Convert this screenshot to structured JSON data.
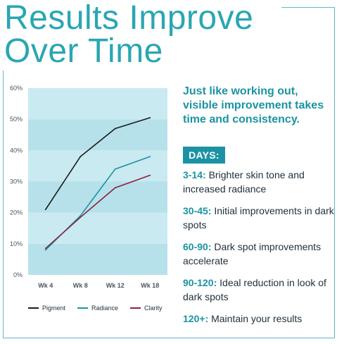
{
  "title": {
    "line1": "Results Improve",
    "line2": "Over Time"
  },
  "chart_data": {
    "type": "line",
    "categories": [
      "Wk 4",
      "Wk 8",
      "Wk 12",
      "Wk 18"
    ],
    "ylim": [
      0,
      60
    ],
    "yticks": [
      "0%",
      "10%",
      "20%",
      "30%",
      "40%",
      "50%",
      "60%"
    ],
    "series": [
      {
        "name": "Pigment",
        "color": "#1c1c1c",
        "values": [
          21,
          38,
          47,
          50.5
        ]
      },
      {
        "name": "Radiance",
        "color": "#1b93a4",
        "values": [
          8,
          19,
          34,
          38
        ]
      },
      {
        "name": "Clarity",
        "color": "#8e1f3f",
        "values": [
          8.5,
          18.5,
          28,
          32
        ]
      }
    ],
    "band_colors": [
      "#b6e1ea",
      "#c9eaf0"
    ],
    "grid": false,
    "legend": "bottom"
  },
  "headline": "Just like working out, visible improvement takes time and consistency.",
  "days_label": "DAYS:",
  "days": [
    {
      "range": "3-14:",
      "text": " Brighter skin tone and increased radiance"
    },
    {
      "range": "30-45:",
      "text": " Initial improvements in dark spots"
    },
    {
      "range": "60-90:",
      "text": " Dark spot improvements accelerate"
    },
    {
      "range": "90-120:",
      "text": " Ideal reduction in look of dark spots"
    },
    {
      "range": "120+:",
      "text": " Maintain your results"
    }
  ]
}
